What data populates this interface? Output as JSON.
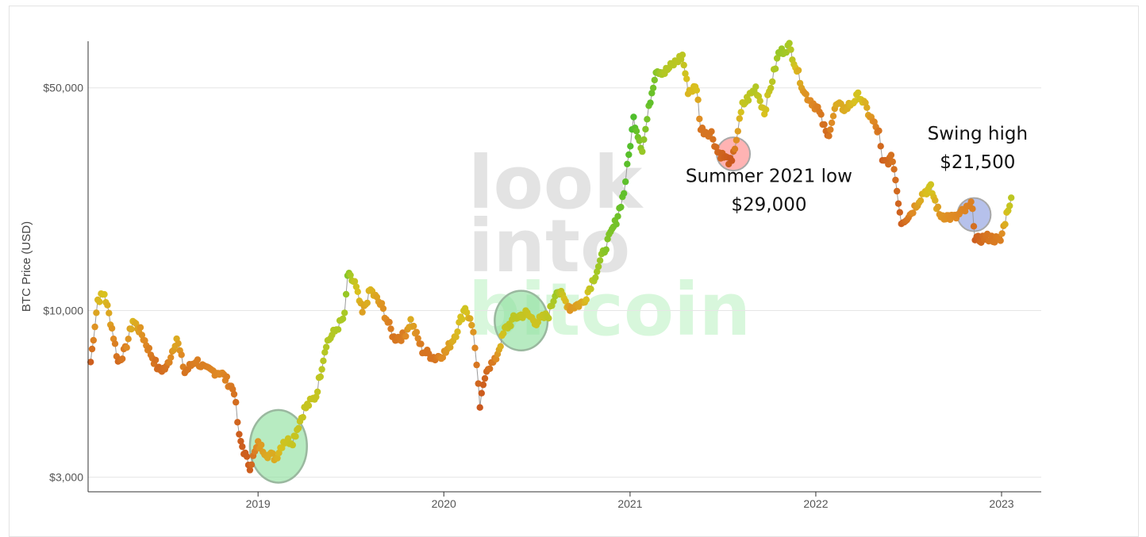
{
  "chart_data": {
    "type": "scatter",
    "title": "",
    "xlabel": "",
    "ylabel": "BTC Price (USD)",
    "y_scale": "log",
    "x_range": [
      "2018-02-01",
      "2023-03-20"
    ],
    "ylim": [
      2700,
      70000
    ],
    "y_ticks": [
      {
        "value": 3000,
        "label": "$3,000"
      },
      {
        "value": 10000,
        "label": "$10,000"
      },
      {
        "value": 50000,
        "label": "$50,000"
      }
    ],
    "x_ticks": [
      {
        "value": "2019-01-01",
        "label": "2019"
      },
      {
        "value": "2020-01-01",
        "label": "2020"
      },
      {
        "value": "2021-01-01",
        "label": "2021"
      },
      {
        "value": "2022-01-01",
        "label": "2022"
      },
      {
        "value": "2023-01-01",
        "label": "2023"
      }
    ],
    "grid": true,
    "legend": "none",
    "color_scale": [
      "#c8531c",
      "#df8a24",
      "#d9c11f",
      "#a9c925",
      "#4fbe2c"
    ],
    "series": [
      {
        "points": [
          [
            "2018-02-06",
            6900,
            0.05
          ],
          [
            "2018-02-20",
            10800,
            0.45
          ],
          [
            "2018-03-05",
            11300,
            0.5
          ],
          [
            "2018-03-20",
            8800,
            0.3
          ],
          [
            "2018-04-01",
            6900,
            0.1
          ],
          [
            "2018-04-15",
            7500,
            0.2
          ],
          [
            "2018-04-30",
            9300,
            0.45
          ],
          [
            "2018-05-15",
            8600,
            0.3
          ],
          [
            "2018-06-01",
            7500,
            0.2
          ],
          [
            "2018-06-20",
            6500,
            0.1
          ],
          [
            "2018-07-05",
            6600,
            0.15
          ],
          [
            "2018-07-25",
            8200,
            0.4
          ],
          [
            "2018-08-10",
            6400,
            0.15
          ],
          [
            "2018-09-01",
            7000,
            0.2
          ],
          [
            "2018-09-20",
            6500,
            0.2
          ],
          [
            "2018-10-20",
            6400,
            0.25
          ],
          [
            "2018-11-15",
            5600,
            0.15
          ],
          [
            "2018-11-25",
            4000,
            0.05
          ],
          [
            "2018-12-10",
            3400,
            0.05
          ],
          [
            "2018-12-16",
            3250,
            0.05
          ],
          [
            "2019-01-01",
            3800,
            0.3
          ],
          [
            "2019-01-20",
            3550,
            0.4
          ],
          [
            "2019-02-05",
            3450,
            0.4
          ],
          [
            "2019-02-20",
            3900,
            0.55
          ],
          [
            "2019-03-10",
            3900,
            0.6
          ],
          [
            "2019-04-02",
            4900,
            0.6
          ],
          [
            "2019-04-25",
            5400,
            0.6
          ],
          [
            "2019-05-15",
            7900,
            0.7
          ],
          [
            "2019-06-01",
            8600,
            0.7
          ],
          [
            "2019-06-20",
            9600,
            0.75
          ],
          [
            "2019-06-26",
            12900,
            0.85
          ],
          [
            "2019-07-10",
            12200,
            0.6
          ],
          [
            "2019-07-25",
            9800,
            0.35
          ],
          [
            "2019-08-10",
            11600,
            0.45
          ],
          [
            "2019-09-01",
            10300,
            0.3
          ],
          [
            "2019-09-25",
            8200,
            0.15
          ],
          [
            "2019-10-15",
            8300,
            0.2
          ],
          [
            "2019-10-28",
            9300,
            0.4
          ],
          [
            "2019-11-20",
            7500,
            0.15
          ],
          [
            "2019-12-15",
            7100,
            0.15
          ],
          [
            "2020-01-05",
            7400,
            0.3
          ],
          [
            "2020-01-25",
            8500,
            0.45
          ],
          [
            "2020-02-12",
            10300,
            0.55
          ],
          [
            "2020-02-28",
            8700,
            0.3
          ],
          [
            "2020-03-12",
            5000,
            0.02
          ],
          [
            "2020-03-25",
            6600,
            0.1
          ],
          [
            "2020-04-10",
            6900,
            0.2
          ],
          [
            "2020-04-30",
            8700,
            0.6
          ],
          [
            "2020-05-20",
            9500,
            0.65
          ],
          [
            "2020-06-10",
            9800,
            0.6
          ],
          [
            "2020-07-01",
            9200,
            0.55
          ],
          [
            "2020-07-25",
            9700,
            0.65
          ],
          [
            "2020-08-10",
            11700,
            0.8
          ],
          [
            "2020-09-05",
            10200,
            0.3
          ],
          [
            "2020-10-01",
            10600,
            0.4
          ],
          [
            "2020-10-25",
            13000,
            0.75
          ],
          [
            "2020-11-15",
            16000,
            0.85
          ],
          [
            "2020-12-05",
            19200,
            0.9
          ],
          [
            "2020-12-20",
            23500,
            0.95
          ],
          [
            "2021-01-08",
            40000,
            1.0
          ],
          [
            "2021-01-25",
            32000,
            0.8
          ],
          [
            "2021-02-10",
            46000,
            0.95
          ],
          [
            "2021-02-21",
            57000,
            0.85
          ],
          [
            "2021-03-10",
            56000,
            0.7
          ],
          [
            "2021-04-14",
            63000,
            0.65
          ],
          [
            "2021-04-25",
            49000,
            0.45
          ],
          [
            "2021-05-12",
            50000,
            0.5
          ],
          [
            "2021-05-20",
            37000,
            0.15
          ],
          [
            "2021-06-10",
            36000,
            0.15
          ],
          [
            "2021-06-22",
            31500,
            0.1
          ],
          [
            "2021-07-20",
            29000,
            0.02
          ],
          [
            "2021-08-10",
            44000,
            0.6
          ],
          [
            "2021-09-05",
            50000,
            0.7
          ],
          [
            "2021-09-22",
            42000,
            0.5
          ],
          [
            "2021-10-20",
            64000,
            0.8
          ],
          [
            "2021-11-10",
            67500,
            0.75
          ],
          [
            "2021-11-25",
            57000,
            0.45
          ],
          [
            "2021-12-10",
            48000,
            0.3
          ],
          [
            "2022-01-05",
            43000,
            0.2
          ],
          [
            "2022-01-24",
            35000,
            0.1
          ],
          [
            "2022-02-10",
            44000,
            0.4
          ],
          [
            "2022-03-01",
            43000,
            0.4
          ],
          [
            "2022-03-28",
            47500,
            0.55
          ],
          [
            "2022-04-20",
            40000,
            0.3
          ],
          [
            "2022-05-05",
            36000,
            0.15
          ],
          [
            "2022-05-12",
            29000,
            0.05
          ],
          [
            "2022-06-01",
            30000,
            0.15
          ],
          [
            "2022-06-18",
            19000,
            0.05
          ],
          [
            "2022-07-05",
            20000,
            0.2
          ],
          [
            "2022-08-01",
            23500,
            0.45
          ],
          [
            "2022-08-15",
            24200,
            0.55
          ],
          [
            "2022-09-01",
            20000,
            0.3
          ],
          [
            "2022-10-01",
            19500,
            0.25
          ],
          [
            "2022-11-05",
            21500,
            0.2
          ],
          [
            "2022-11-10",
            16500,
            0.05
          ],
          [
            "2022-12-01",
            17000,
            0.15
          ],
          [
            "2022-12-30",
            16600,
            0.2
          ],
          [
            "2023-01-14",
            21000,
            0.55
          ],
          [
            "2023-01-20",
            22600,
            0.65
          ]
        ]
      }
    ],
    "highlights": [
      {
        "shape": "ellipse",
        "color": "#90e0a0",
        "x_center": "2019-02-10",
        "y_center": 3750,
        "x_radius_days": 56,
        "y_radius_factor": 1.3
      },
      {
        "shape": "ellipse",
        "color": "#90e0a0",
        "x_center": "2020-06-01",
        "y_center": 9300,
        "x_radius_days": 52,
        "y_radius_factor": 1.24
      },
      {
        "shape": "circle",
        "color": "#ff8a8a",
        "x_center": "2021-07-23",
        "y_center": 31000
      },
      {
        "shape": "circle",
        "color": "#8fa0e0",
        "x_center": "2022-11-08",
        "y_center": 20000
      }
    ],
    "annotations": [
      {
        "lines": [
          "Summer 2021 low",
          "$29,000"
        ],
        "x": "2021-10-01",
        "y_top": 26500
      },
      {
        "lines": [
          "Swing high",
          "$21,500"
        ],
        "x": "2022-11-15",
        "y_top": 36000
      }
    ],
    "watermark": {
      "lines": [
        "look",
        "into",
        "bitcoin"
      ],
      "colors": [
        "#e3e3e3",
        "#e3e3e3",
        "#d8f7dc"
      ]
    }
  }
}
